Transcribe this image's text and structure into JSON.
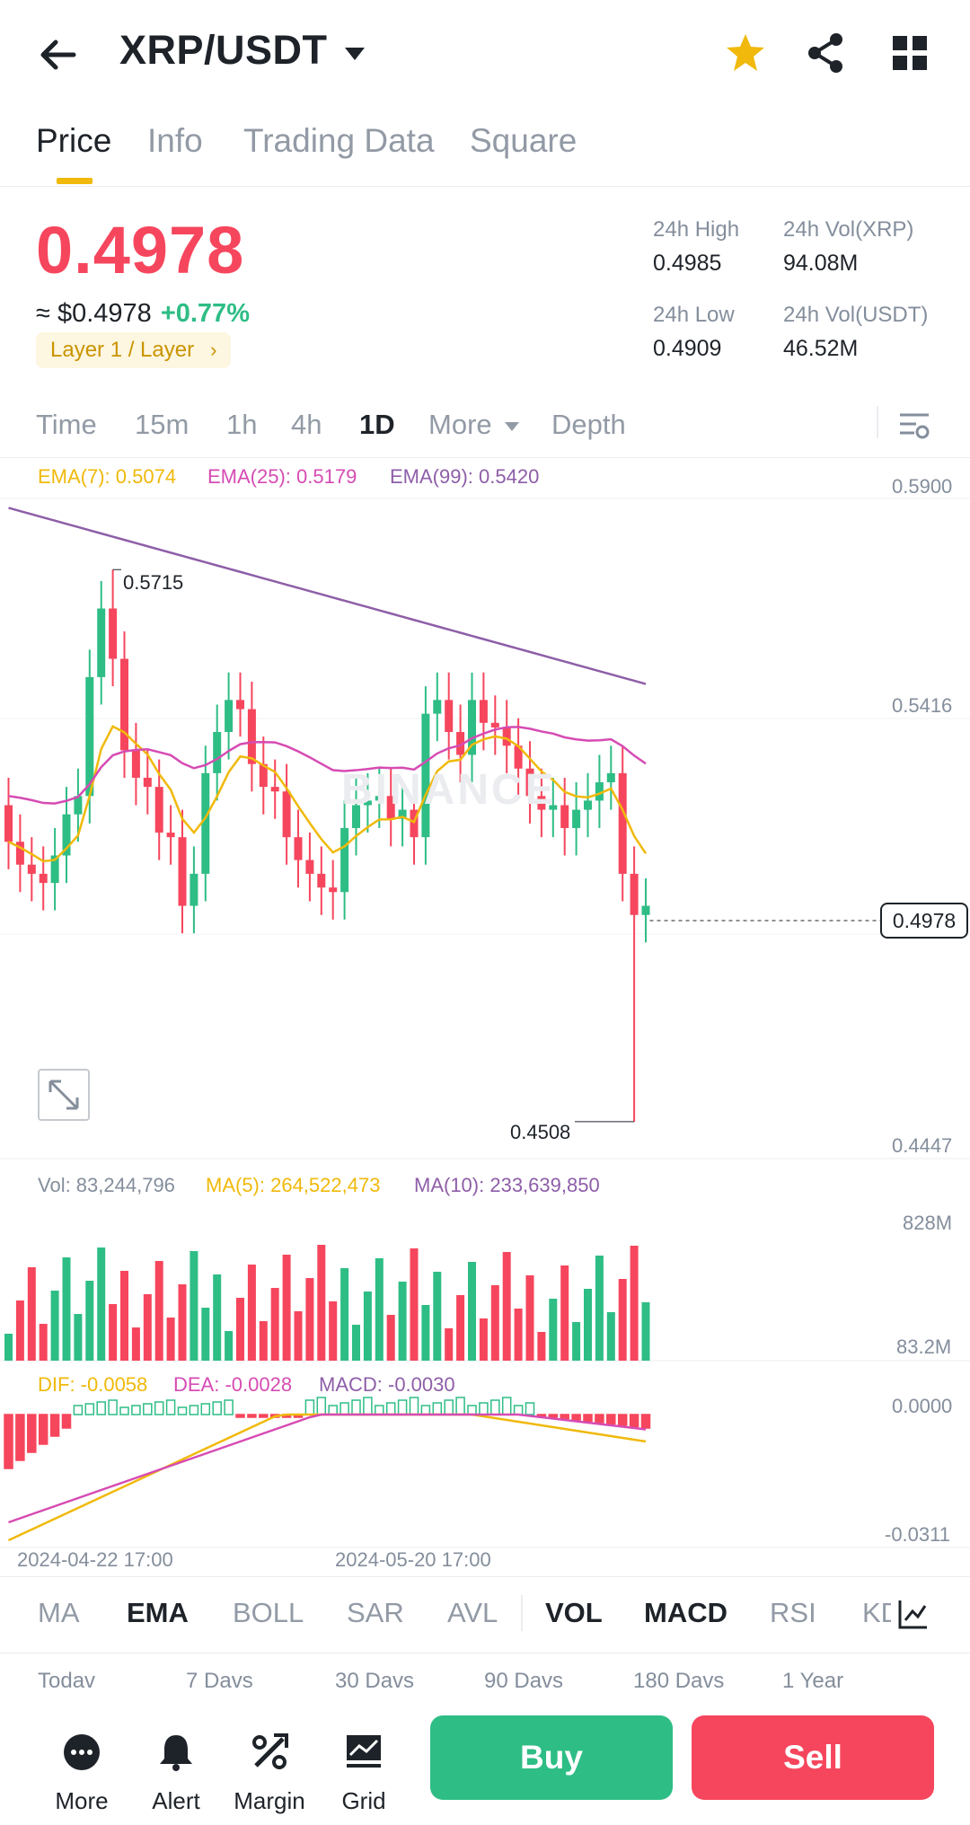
{
  "header": {
    "pair": "XRP/USDT",
    "icons": {
      "back": "arrow-left-icon",
      "caret": "caret-down-icon",
      "favorite": "star-icon",
      "share": "share-icon",
      "grid": "grid-icon"
    },
    "favorite_color": "#f0b90b"
  },
  "tabs": [
    "Price",
    "Info",
    "Trading Data",
    "Square"
  ],
  "ticker": {
    "last_price": "0.4978",
    "usd_price": "≈ $0.4978",
    "change_pct": "+0.77%",
    "tag": "Layer 1 / Layer",
    "high_label": "24h High",
    "high_value": "0.4985",
    "low_label": "24h Low",
    "low_value": "0.4909",
    "vol_base_label": "24h Vol(XRP)",
    "vol_base_value": "94.08M",
    "vol_quote_label": "24h Vol(USDT)",
    "vol_quote_value": "46.52M"
  },
  "intervals": [
    "Time",
    "15m",
    "1h",
    "4h",
    "1D",
    "More",
    "Depth"
  ],
  "active_interval": "1D",
  "ema": {
    "ema7": "EMA(7): 0.5074",
    "ema25": "EMA(25): 0.5179",
    "ema99": "EMA(99): 0.5420"
  },
  "price_axis": [
    "0.5900",
    "0.5416",
    "0.4447"
  ],
  "current_price_tag": "0.4978",
  "high_marker": "0.5715",
  "low_marker": "0.4508",
  "watermark": "BINANCE",
  "volume": {
    "vol": "Vol: 83,244,796",
    "ma5": "MA(5): 264,522,473",
    "ma10": "MA(10): 233,639,850",
    "axis_top": "828M",
    "axis_bottom": "83.2M"
  },
  "macd": {
    "dif": "DIF: -0.0058",
    "dea": "DEA: -0.0028",
    "macd": "MACD: -0.0030",
    "axis_top": "0.0000",
    "axis_bottom": "-0.0311"
  },
  "dates": [
    "2024-04-22 17:00",
    "2024-05-20 17:00"
  ],
  "indicators": [
    "MA",
    "EMA",
    "BOLL",
    "SAR",
    "AVL",
    "VOL",
    "MACD",
    "RSI",
    "KD"
  ],
  "ranges": [
    "Todav",
    "7 Davs",
    "30 Davs",
    "90 Davs",
    "180 Davs",
    "1 Year"
  ],
  "nav": [
    "More",
    "Alert",
    "Margin",
    "Grid"
  ],
  "buy_label": "Buy",
  "sell_label": "Sell",
  "colors": {
    "up": "#2ebd85",
    "down": "#f6465d",
    "ema7": "#f0b90b",
    "ema25": "#d64bb3",
    "ema99": "#8e5ea8"
  }
}
